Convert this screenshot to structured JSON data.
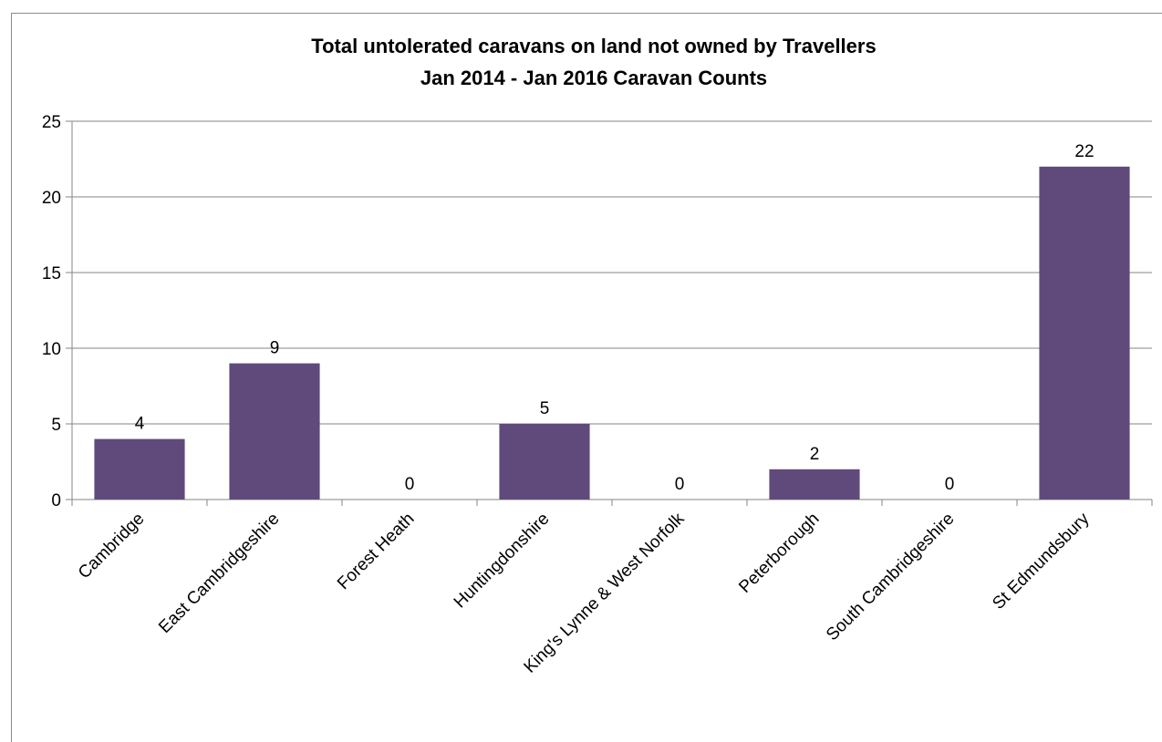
{
  "chart_data": {
    "type": "bar",
    "title": [
      "Total untolerated caravans on land not owned by Travellers",
      "Jan 2014 - Jan 2016 Caravan Counts"
    ],
    "categories": [
      "Cambridge",
      "East Cambridgeshire",
      "Forest Heath",
      "Huntingdonshire",
      "King's Lynne & West Norfolk",
      "Peterborough",
      "South Cambridgeshire",
      "St Edmundsbury"
    ],
    "values": [
      4,
      9,
      0,
      5,
      0,
      2,
      0,
      22
    ],
    "data_labels": [
      "4",
      "9",
      "0",
      "5",
      "0",
      "2",
      "0",
      "22"
    ],
    "ylim": [
      0,
      25
    ],
    "yticks": [
      0,
      5,
      10,
      15,
      20,
      25
    ],
    "ytick_labels": [
      "0",
      "5",
      "10",
      "15",
      "20",
      "25"
    ],
    "xlabel": "",
    "ylabel": "",
    "grid": true,
    "legend": "none",
    "bar_color": "#604a7b",
    "grid_color": "#868686",
    "axis_color": "#868686"
  }
}
